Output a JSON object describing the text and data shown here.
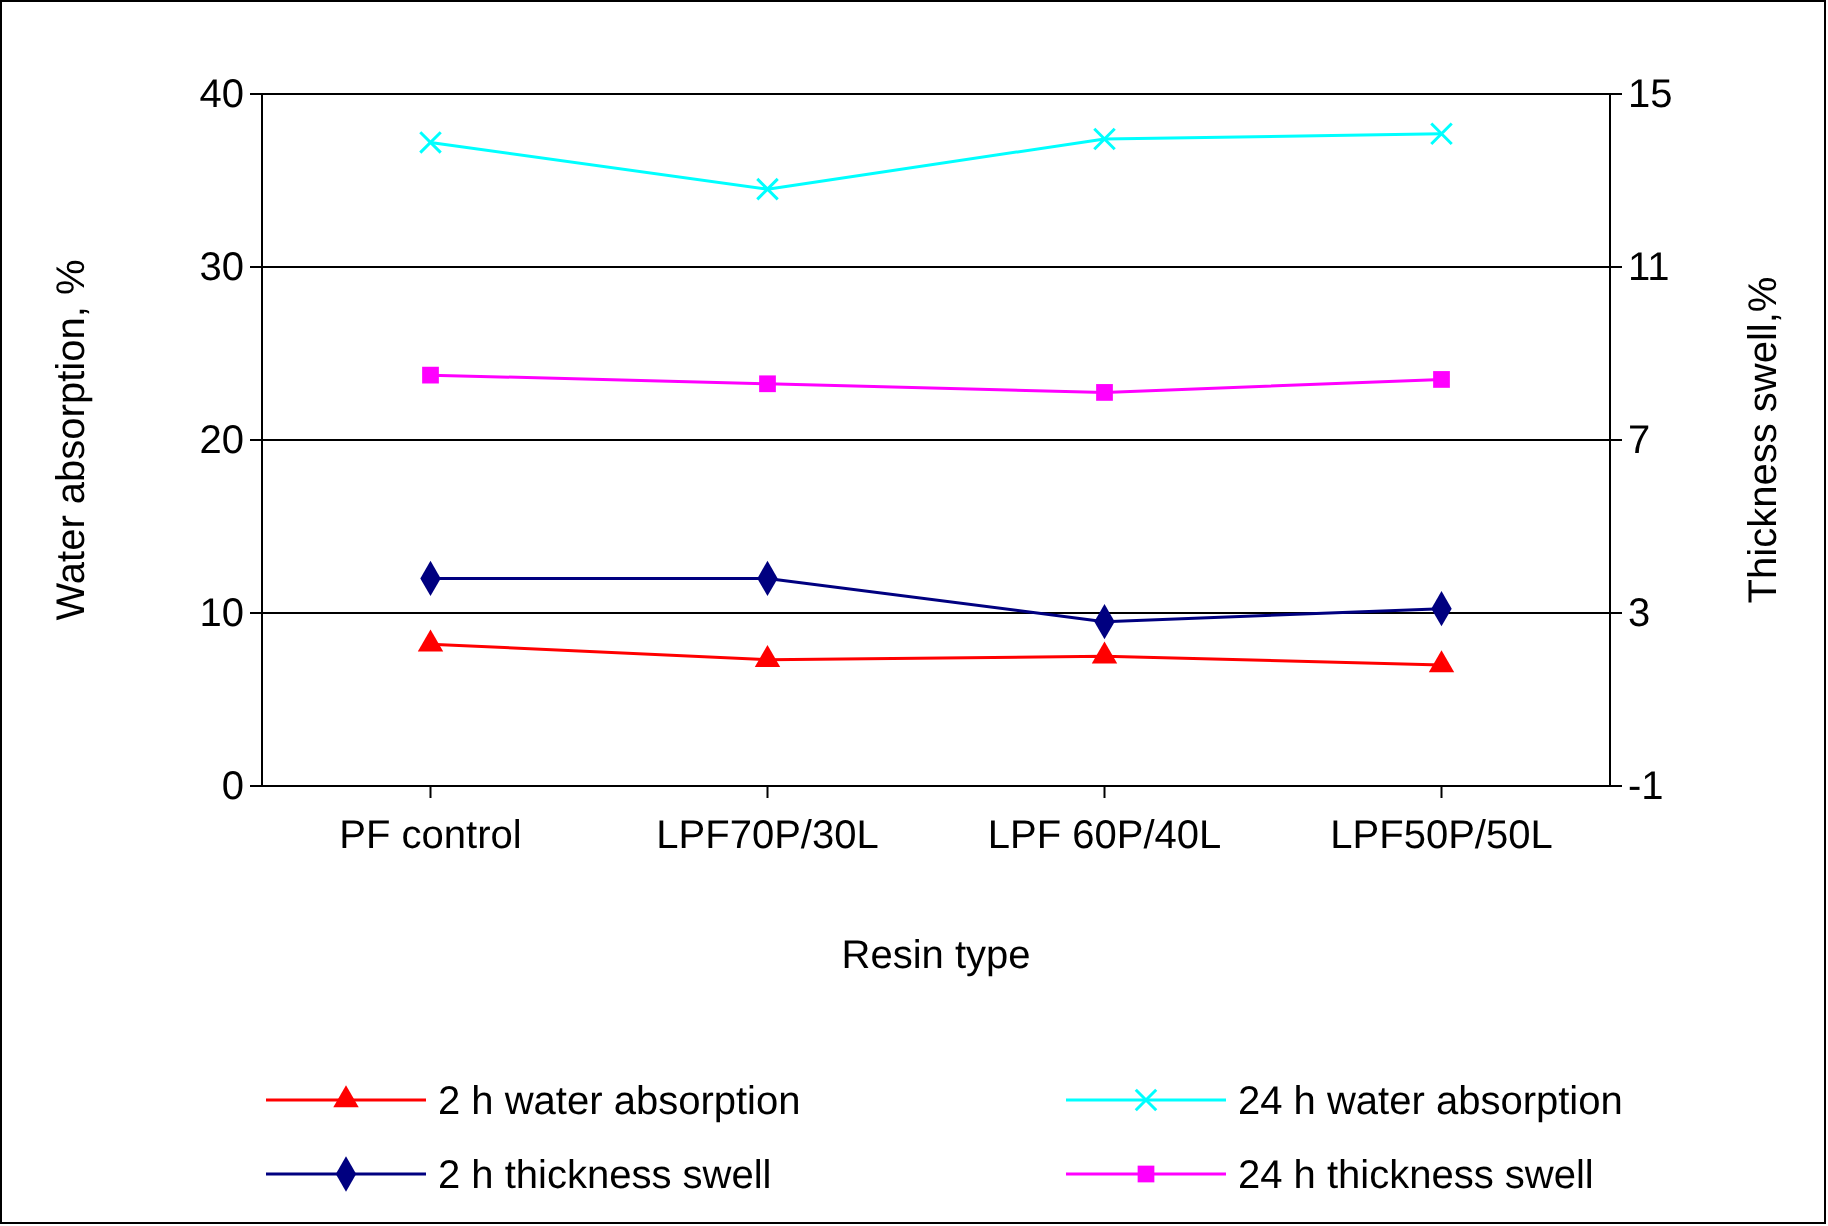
{
  "chart_data": {
    "type": "line",
    "xlabel": "Resin type",
    "ylabel": "Water absorption, %",
    "y2label": "Thickness swell,%",
    "categories": [
      "PF control",
      "LPF70P/30L",
      "LPF 60P/40L",
      "LPF50P/50L"
    ],
    "series": [
      {
        "name": "2 h water absorption",
        "color": "#ff0000",
        "marker": "triangle",
        "values": [
          8.2,
          7.3,
          7.5,
          7.0
        ]
      },
      {
        "name": "24 h water absorption",
        "color": "#00ffff",
        "marker": "cross",
        "values": [
          37.2,
          34.5,
          37.4,
          37.7
        ]
      },
      {
        "name": "2 h thickness swell",
        "color": "#000080",
        "marker": "diamond",
        "axis": "y2",
        "values": [
          3.8,
          3.8,
          2.8,
          3.1
        ]
      },
      {
        "name": "24 h thickness swell",
        "color": "#ff00ff",
        "marker": "square",
        "axis": "y2",
        "values": [
          8.5,
          8.3,
          8.1,
          8.4
        ]
      }
    ],
    "ylim": [
      0,
      40
    ],
    "yticks": [
      0,
      10,
      20,
      30,
      40
    ],
    "y2lim": [
      -1,
      15
    ],
    "y2ticks": [
      -1,
      3,
      7,
      11,
      15
    ],
    "grid": "y",
    "legend": "bottom"
  }
}
